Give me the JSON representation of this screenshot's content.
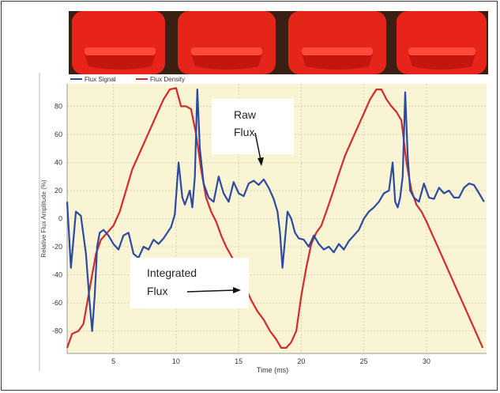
{
  "photo": {
    "description_icon": "red-coil-blocks-photo"
  },
  "chart_data": {
    "type": "line",
    "xlabel": "Time (ms)",
    "ylabel": "Relative Flux Amplitude (%)",
    "xlim": [
      1.3,
      34.8
    ],
    "ylim": [
      -96,
      96
    ],
    "x_ticks": [
      5,
      10,
      15,
      20,
      25,
      30
    ],
    "y_ticks": [
      80,
      60,
      40,
      20,
      0,
      -20,
      -40,
      -60,
      -80
    ],
    "grid": true,
    "legend_position": "top-left",
    "colors": {
      "Flux Signal": "#2b4aa0",
      "Flux Density": "#d42a2a",
      "background": "#f9f4d4",
      "grid": "#d9d2b2"
    },
    "series": [
      {
        "name": "Flux Signal",
        "color": "#2b4aa0",
        "x": [
          1.3,
          1.6,
          2.0,
          2.4,
          2.8,
          3.1,
          3.3,
          3.5,
          3.7,
          3.9,
          4.2,
          4.6,
          5.0,
          5.4,
          5.8,
          6.2,
          6.6,
          7.0,
          7.4,
          7.8,
          8.2,
          8.6,
          9.0,
          9.3,
          9.6,
          9.9,
          10.2,
          10.5,
          10.7,
          10.9,
          11.1,
          11.3,
          11.5,
          11.7,
          11.9,
          12.2,
          12.6,
          13.0,
          13.4,
          13.8,
          14.2,
          14.6,
          15.0,
          15.4,
          15.8,
          16.2,
          16.6,
          17.0,
          17.4,
          17.8,
          18.1,
          18.3,
          18.5,
          18.7,
          18.9,
          19.2,
          19.5,
          19.8,
          20.2,
          20.6,
          21.0,
          21.4,
          21.8,
          22.2,
          22.6,
          23.0,
          23.4,
          23.8,
          24.2,
          24.6,
          25.0,
          25.4,
          25.8,
          26.2,
          26.6,
          27.0,
          27.3,
          27.5,
          27.7,
          27.9,
          28.1,
          28.3,
          28.5,
          28.7,
          29.0,
          29.4,
          29.8,
          30.2,
          30.6,
          31.0,
          31.4,
          31.8,
          32.2,
          32.6,
          33.0,
          33.4,
          33.8,
          34.2,
          34.6
        ],
        "y": [
          12,
          -35,
          5,
          2,
          -25,
          -60,
          -80,
          -55,
          -20,
          -10,
          -8,
          -12,
          -18,
          -22,
          -12,
          -10,
          -25,
          -28,
          -20,
          -22,
          -15,
          -18,
          -14,
          -10,
          -6,
          3,
          40,
          15,
          10,
          15,
          20,
          8,
          30,
          92,
          50,
          25,
          15,
          12,
          30,
          18,
          12,
          26,
          18,
          16,
          25,
          27,
          24,
          28,
          22,
          14,
          5,
          -10,
          -35,
          -15,
          5,
          0,
          -10,
          -14,
          -15,
          -20,
          -12,
          -18,
          -22,
          -20,
          -24,
          -18,
          -22,
          -16,
          -12,
          -8,
          0,
          5,
          8,
          12,
          18,
          20,
          40,
          12,
          8,
          15,
          30,
          90,
          45,
          20,
          15,
          12,
          25,
          15,
          14,
          22,
          18,
          20,
          15,
          15,
          22,
          25,
          24,
          18,
          12
        ]
      },
      {
        "name": "Flux Density",
        "color": "#d42a2a",
        "x": [
          1.3,
          1.7,
          2.2,
          2.6,
          3.0,
          3.3,
          3.6,
          4.0,
          4.5,
          5.0,
          5.5,
          6.0,
          6.5,
          7.0,
          7.5,
          8.0,
          8.5,
          9.0,
          9.5,
          10.0,
          10.4,
          10.8,
          11.2,
          11.6,
          12.0,
          12.4,
          12.8,
          13.2,
          13.6,
          14.0,
          14.5,
          15.0,
          15.5,
          16.0,
          16.5,
          17.0,
          17.5,
          18.0,
          18.4,
          18.8,
          19.2,
          19.6,
          20.0,
          20.4,
          20.8,
          21.2,
          21.6,
          22.0,
          22.5,
          23.0,
          23.5,
          24.0,
          24.5,
          25.0,
          25.5,
          26.0,
          26.4,
          26.8,
          27.2,
          27.6,
          28.0,
          28.4,
          28.8,
          29.2,
          29.6,
          30.0,
          30.5,
          31.0,
          31.5,
          32.0,
          32.5,
          33.0,
          33.5,
          34.0,
          34.5
        ],
        "y": [
          -92,
          -82,
          -80,
          -75,
          -55,
          -40,
          -25,
          -15,
          -10,
          -5,
          5,
          20,
          35,
          45,
          55,
          65,
          75,
          85,
          92,
          93,
          80,
          80,
          78,
          60,
          35,
          15,
          5,
          -2,
          -12,
          -20,
          -28,
          -38,
          -48,
          -58,
          -66,
          -72,
          -80,
          -86,
          -92,
          -92,
          -88,
          -80,
          -55,
          -35,
          -18,
          -10,
          -5,
          5,
          18,
          32,
          45,
          55,
          65,
          75,
          85,
          92,
          92,
          85,
          80,
          76,
          70,
          40,
          20,
          10,
          5,
          -2,
          -12,
          -22,
          -32,
          -42,
          -52,
          -62,
          -72,
          -82,
          -92
        ]
      }
    ],
    "annotations": [
      {
        "text_line1": "Raw",
        "text_line2": "Flux"
      },
      {
        "text_line1": "Integrated",
        "text_line2": "Flux"
      }
    ]
  }
}
